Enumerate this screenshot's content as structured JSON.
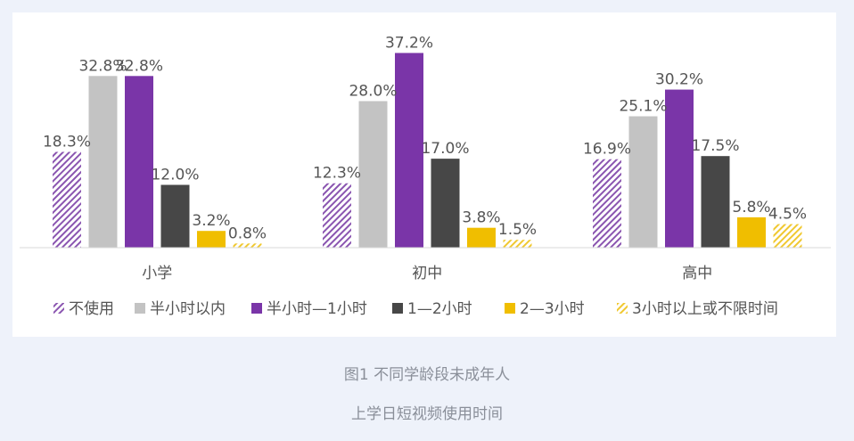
{
  "chart_data": {
    "type": "bar",
    "categories": [
      "小学",
      "初中",
      "高中"
    ],
    "series": [
      {
        "name": "不使用",
        "values": [
          18.3,
          12.3,
          16.9
        ],
        "labels": [
          "18.3%",
          "12.3%",
          "16.9%"
        ],
        "color": "#7b3fa6",
        "pattern": "hatch"
      },
      {
        "name": "半小时以内",
        "values": [
          32.8,
          28.0,
          25.1
        ],
        "labels": [
          "32.8%",
          "28.0%",
          "25.1%"
        ],
        "color": "#c3c3c3",
        "pattern": "solid"
      },
      {
        "name": "半小时—1小时",
        "values": [
          32.8,
          37.2,
          30.2
        ],
        "labels": [
          "32.8%",
          "37.2%",
          "30.2%"
        ],
        "color": "#7a35a8",
        "pattern": "solid"
      },
      {
        "name": "1—2小时",
        "values": [
          12.0,
          17.0,
          17.5
        ],
        "labels": [
          "12.0%",
          "17.0%",
          "17.5%"
        ],
        "color": "#474747",
        "pattern": "solid"
      },
      {
        "name": "2—3小时",
        "values": [
          3.2,
          3.8,
          5.8
        ],
        "labels": [
          "3.2%",
          "3.8%",
          "5.8%"
        ],
        "color": "#f0be00",
        "pattern": "solid"
      },
      {
        "name": "3小时以上或不限时间",
        "values": [
          0.8,
          1.5,
          4.5
        ],
        "labels": [
          "0.8%",
          "1.5%",
          "4.5%"
        ],
        "color": "#f0cc40",
        "pattern": "hatch"
      }
    ],
    "ylim": [
      0,
      40
    ],
    "grid": false,
    "legend_position": "bottom"
  },
  "caption": {
    "line1": "图1 不同学龄段未成年人",
    "line2": "上学日短视频使用时间"
  }
}
